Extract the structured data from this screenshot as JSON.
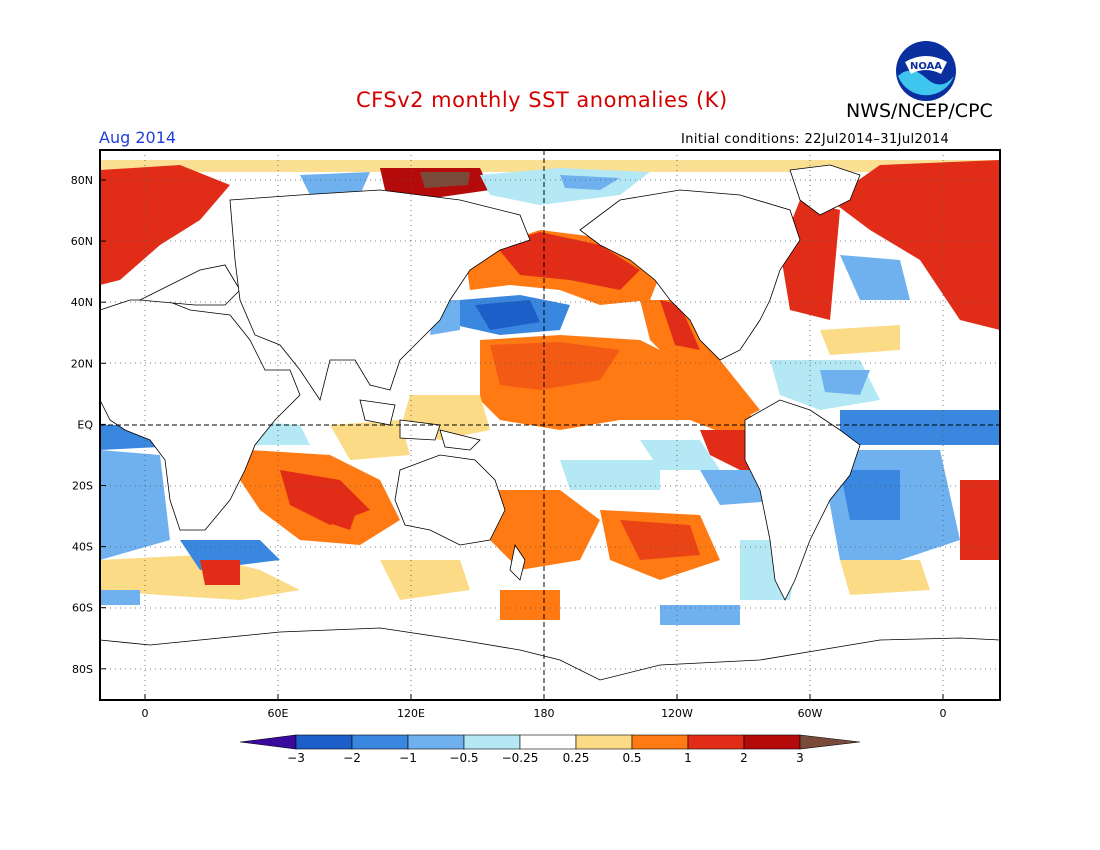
{
  "title": "CFSv2 monthly SST anomalies (K)",
  "organization": "NWS/NCEP/CPC",
  "month_label": "Aug 2014",
  "initial_conditions": "Initial conditions: 22Jul2014–31Jul2014",
  "logo": {
    "icon": "noaa-logo-icon",
    "text": "NOAA"
  },
  "lat_ticks": [
    "80N",
    "60N",
    "40N",
    "20N",
    "EQ",
    "20S",
    "40S",
    "60S",
    "80S"
  ],
  "lon_ticks": [
    "0",
    "60E",
    "120E",
    "180",
    "120W",
    "60W",
    "0"
  ],
  "colorbar": {
    "labels": [
      "−3",
      "−2",
      "−1",
      "−0.5",
      "−0.25",
      "0.25",
      "0.5",
      "1",
      "2",
      "3"
    ],
    "colors": [
      "#3a0a9e",
      "#1d5fc9",
      "#3a87e0",
      "#6fb0ee",
      "#b4e8f5",
      "#ffffff",
      "#fbdb86",
      "#ff7a12",
      "#e12d18",
      "#b50a0a",
      "#7a4a3a"
    ]
  }
}
